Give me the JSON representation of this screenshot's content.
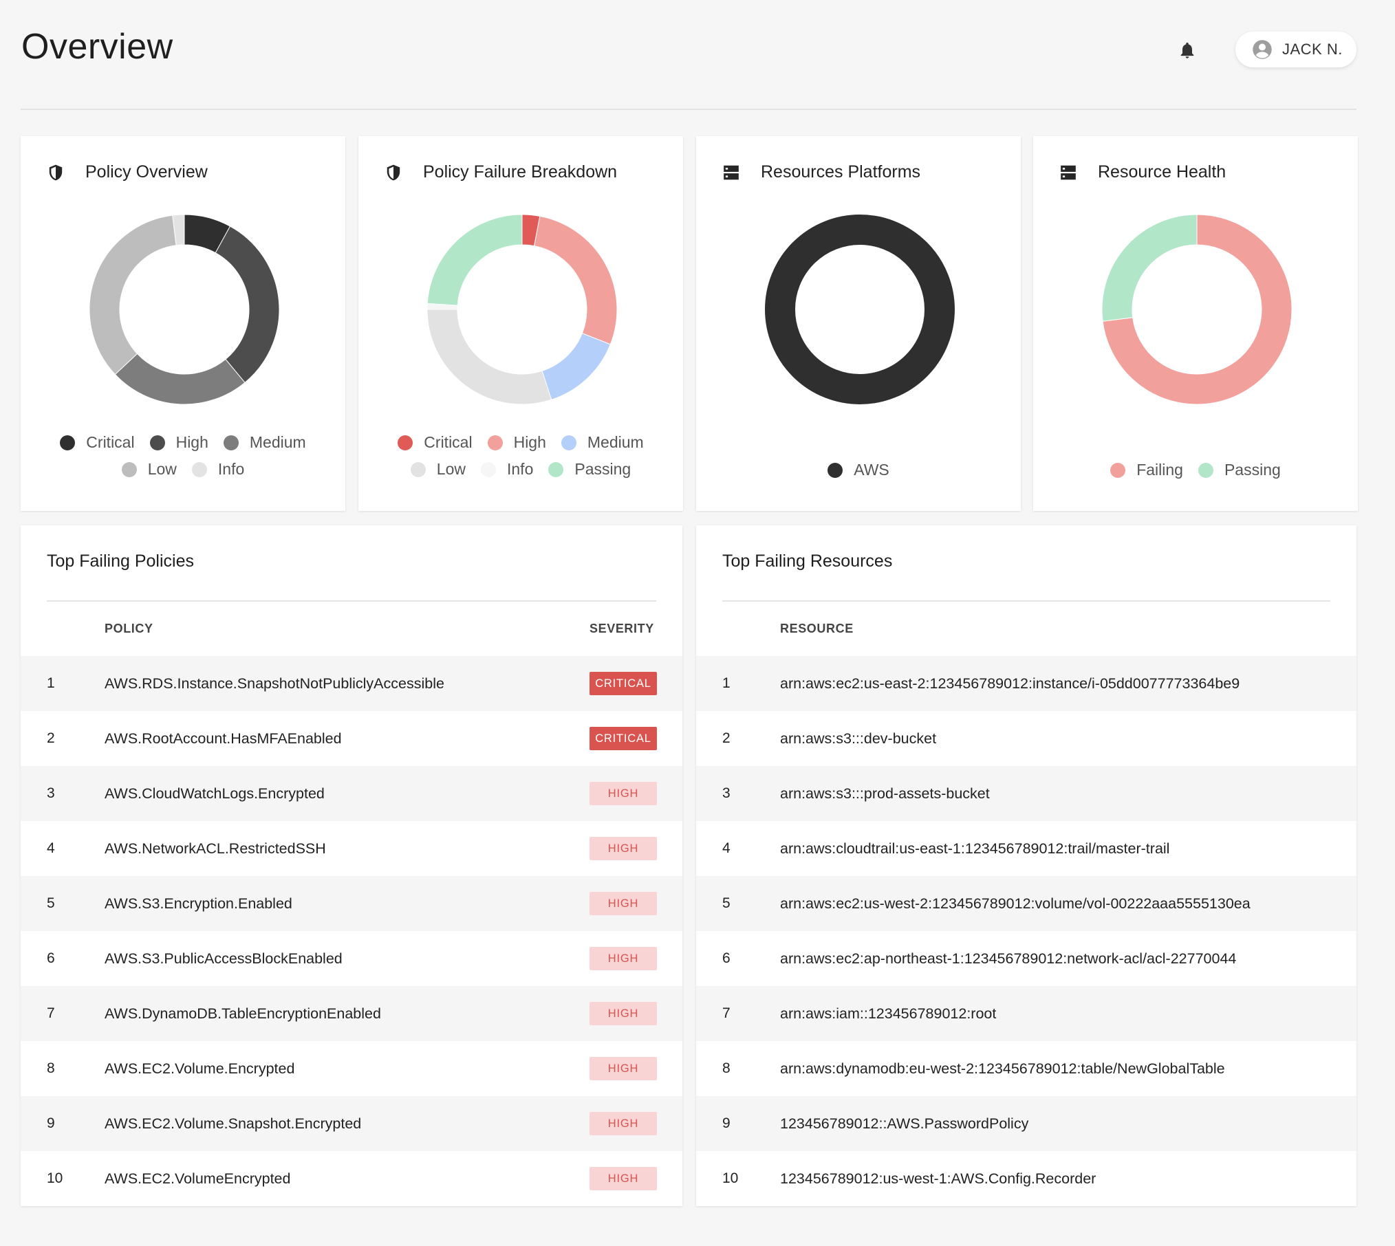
{
  "page": {
    "title": "Overview"
  },
  "user": {
    "name": "JACK N."
  },
  "colors": {
    "critical": "#e05a57",
    "high": "#f2a09c",
    "medium": "#b3cffa",
    "low": "#e2e2e2",
    "info": "#f6f6f6",
    "passing": "#b1e6c8",
    "aws": "#2f2f2f"
  },
  "cards": [
    {
      "title": "Policy Overview",
      "icon": "shield-icon",
      "legend_rows": [
        [
          {
            "label": "Critical",
            "color": "#2f2f2f"
          },
          {
            "label": "High",
            "color": "#4d4d4d"
          },
          {
            "label": "Medium",
            "color": "#7d7d7d"
          }
        ],
        [
          {
            "label": "Low",
            "color": "#bdbdbd"
          },
          {
            "label": "Info",
            "color": "#e3e3e3"
          }
        ]
      ]
    },
    {
      "title": "Policy Failure Breakdown",
      "icon": "shield-icon",
      "legend_rows": [
        [
          {
            "label": "Critical",
            "color": "#e05a57"
          },
          {
            "label": "High",
            "color": "#f2a09c"
          },
          {
            "label": "Medium",
            "color": "#b3cffa"
          }
        ],
        [
          {
            "label": "Low",
            "color": "#e2e2e2"
          },
          {
            "label": "Info",
            "color": "#f6f6f6"
          },
          {
            "label": "Passing",
            "color": "#b1e6c8"
          }
        ]
      ]
    },
    {
      "title": "Resources Platforms",
      "icon": "server-icon",
      "legend_rows": [
        [
          {
            "label": "AWS",
            "color": "#2f2f2f"
          }
        ]
      ]
    },
    {
      "title": "Resource Health",
      "icon": "server-icon",
      "legend_rows": [
        [
          {
            "label": "Failing",
            "color": "#f2a09c"
          },
          {
            "label": "Passing",
            "color": "#b1e6c8"
          }
        ]
      ]
    }
  ],
  "chart_data": [
    {
      "type": "pie",
      "categories": [
        "Critical",
        "High",
        "Medium",
        "Low",
        "Info"
      ],
      "values": [
        8,
        31,
        24,
        35,
        2
      ],
      "colors": [
        "#2f2f2f",
        "#4d4d4d",
        "#7d7d7d",
        "#bdbdbd",
        "#e3e3e3"
      ],
      "donut": true
    },
    {
      "type": "pie",
      "categories": [
        "Critical",
        "High",
        "Medium",
        "Low",
        "Info",
        "Passing"
      ],
      "values": [
        3,
        28,
        14,
        30,
        1,
        24
      ],
      "colors": [
        "#e05a57",
        "#f2a09c",
        "#b3cffa",
        "#e2e2e2",
        "#f6f6f6",
        "#b1e6c8"
      ],
      "donut": true
    },
    {
      "type": "pie",
      "categories": [
        "AWS"
      ],
      "values": [
        100
      ],
      "colors": [
        "#2f2f2f"
      ],
      "donut": true
    },
    {
      "type": "pie",
      "categories": [
        "Failing",
        "Passing"
      ],
      "values": [
        73,
        27
      ],
      "colors": [
        "#f2a09c",
        "#b1e6c8"
      ],
      "donut": true
    }
  ],
  "policies_table": {
    "title": "Top Failing Policies",
    "columns": {
      "policy": "POLICY",
      "severity": "SEVERITY"
    },
    "rows": [
      {
        "num": "1",
        "policy": "AWS.RDS.Instance.SnapshotNotPubliclyAccessible",
        "severity": "CRITICAL"
      },
      {
        "num": "2",
        "policy": "AWS.RootAccount.HasMFAEnabled",
        "severity": "CRITICAL"
      },
      {
        "num": "3",
        "policy": "AWS.CloudWatchLogs.Encrypted",
        "severity": "HIGH"
      },
      {
        "num": "4",
        "policy": "AWS.NetworkACL.RestrictedSSH",
        "severity": "HIGH"
      },
      {
        "num": "5",
        "policy": "AWS.S3.Encryption.Enabled",
        "severity": "HIGH"
      },
      {
        "num": "6",
        "policy": "AWS.S3.PublicAccessBlockEnabled",
        "severity": "HIGH"
      },
      {
        "num": "7",
        "policy": "AWS.DynamoDB.TableEncryptionEnabled",
        "severity": "HIGH"
      },
      {
        "num": "8",
        "policy": "AWS.EC2.Volume.Encrypted",
        "severity": "HIGH"
      },
      {
        "num": "9",
        "policy": "AWS.EC2.Volume.Snapshot.Encrypted",
        "severity": "HIGH"
      },
      {
        "num": "10",
        "policy": "AWS.EC2.VolumeEncrypted",
        "severity": "HIGH"
      }
    ]
  },
  "resources_table": {
    "title": "Top Failing Resources",
    "columns": {
      "resource": "RESOURCE"
    },
    "rows": [
      {
        "num": "1",
        "resource": "arn:aws:ec2:us-east-2:123456789012:instance/i-05dd0077773364be9"
      },
      {
        "num": "2",
        "resource": "arn:aws:s3:::dev-bucket"
      },
      {
        "num": "3",
        "resource": "arn:aws:s3:::prod-assets-bucket"
      },
      {
        "num": "4",
        "resource": "arn:aws:cloudtrail:us-east-1:123456789012:trail/master-trail"
      },
      {
        "num": "5",
        "resource": "arn:aws:ec2:us-west-2:123456789012:volume/vol-00222aaa5555130ea"
      },
      {
        "num": "6",
        "resource": "arn:aws:ec2:ap-northeast-1:123456789012:network-acl/acl-22770044"
      },
      {
        "num": "7",
        "resource": "arn:aws:iam::123456789012:root"
      },
      {
        "num": "8",
        "resource": "arn:aws:dynamodb:eu-west-2:123456789012:table/NewGlobalTable"
      },
      {
        "num": "9",
        "resource": "123456789012::AWS.PasswordPolicy"
      },
      {
        "num": "10",
        "resource": "123456789012:us-west-1:AWS.Config.Recorder"
      }
    ]
  }
}
